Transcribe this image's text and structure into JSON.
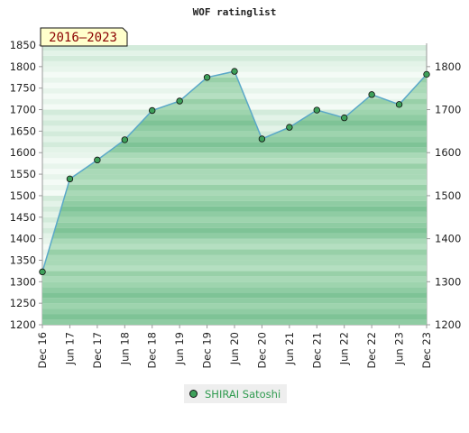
{
  "chart_data": {
    "type": "area",
    "title": "WOF ratinglist",
    "period_label": "2016–2023",
    "x": [
      "Dec 16",
      "Jun 17",
      "Dec 17",
      "Jun 18",
      "Dec 18",
      "Jun 19",
      "Dec 19",
      "Jun 20",
      "Dec 20",
      "Jun 21",
      "Dec 21",
      "Jun 22",
      "Dec 22",
      "Jun 23",
      "Dec 23"
    ],
    "series": [
      {
        "name": "SHIRAI Satoshi",
        "values": [
          1323,
          1539,
          1583,
          1630,
          1698,
          1720,
          1775,
          1789,
          1632,
          1659,
          1699,
          1681,
          1735,
          1712,
          1782
        ]
      }
    ],
    "left_axis": {
      "ylim": [
        1200,
        1850
      ],
      "ticks": [
        1200,
        1250,
        1300,
        1350,
        1400,
        1450,
        1500,
        1550,
        1600,
        1650,
        1700,
        1750,
        1800,
        1850
      ]
    },
    "right_axis": {
      "ylim": [
        1200,
        1850
      ],
      "ticks": [
        1200,
        1300,
        1400,
        1500,
        1600,
        1700,
        1800
      ]
    },
    "legend_position": "bottom-center",
    "colors": {
      "line": "#5aa8c8",
      "point": "#3ea05a",
      "fill_dark": "#7cc495",
      "fill_light": "#eef7f0",
      "badge_bg": "#ffffcc",
      "badge_text": "#8b0000"
    }
  },
  "legend": {
    "items": [
      {
        "label": "SHIRAI Satoshi"
      }
    ]
  }
}
